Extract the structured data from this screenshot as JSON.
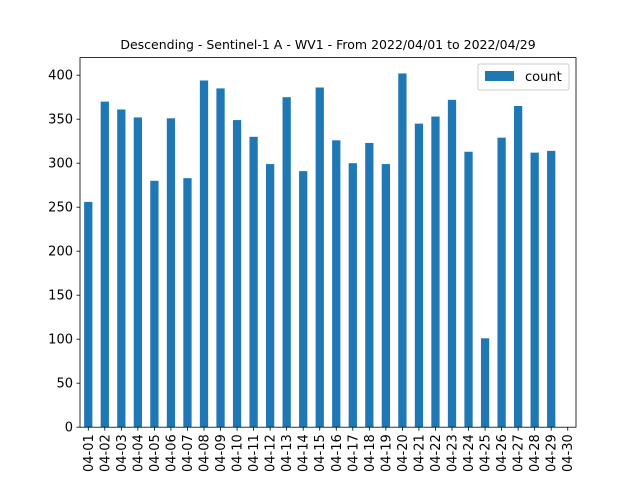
{
  "chart_data": {
    "type": "bar",
    "title": "Descending - Sentinel-1 A - WV1 - From 2022/04/01 to 2022/04/29",
    "xlabel": "",
    "ylabel": "",
    "ylim": [
      0,
      420
    ],
    "yticks": [
      0,
      50,
      100,
      150,
      200,
      250,
      300,
      350,
      400
    ],
    "grid": false,
    "legend_position": "top-right",
    "bar_color": "#1f77b4",
    "categories": [
      "04-01",
      "04-02",
      "04-03",
      "04-04",
      "04-05",
      "04-06",
      "04-07",
      "04-08",
      "04-09",
      "04-10",
      "04-11",
      "04-12",
      "04-13",
      "04-14",
      "04-15",
      "04-16",
      "04-17",
      "04-18",
      "04-19",
      "04-20",
      "04-21",
      "04-22",
      "04-23",
      "04-24",
      "04-25",
      "04-26",
      "04-27",
      "04-28",
      "04-29",
      "04-30"
    ],
    "series": [
      {
        "name": "count",
        "values": [
          256,
          370,
          361,
          352,
          280,
          351,
          283,
          394,
          385,
          349,
          330,
          299,
          375,
          291,
          386,
          326,
          300,
          323,
          299,
          402,
          345,
          353,
          372,
          313,
          101,
          329,
          365,
          312,
          314,
          0
        ]
      }
    ]
  }
}
